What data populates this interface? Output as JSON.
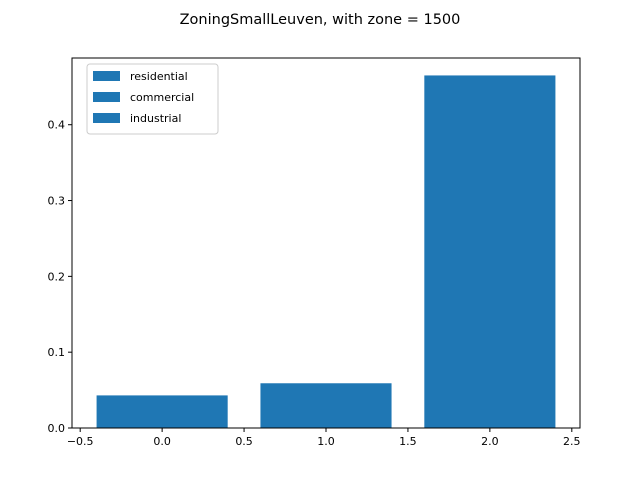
{
  "chart_data": {
    "type": "bar",
    "title": "ZoningSmallLeuven, with zone = 1500",
    "xlabel": "",
    "ylabel": "",
    "x": [
      0,
      1,
      2
    ],
    "values": [
      0.043,
      0.059,
      0.465
    ],
    "bar_width": 0.8,
    "xlim": [
      -0.55,
      2.55
    ],
    "ylim": [
      0,
      0.488
    ],
    "xticks": [
      -0.5,
      0.0,
      0.5,
      1.0,
      1.5,
      2.0,
      2.5
    ],
    "xtick_labels": [
      "−0.5",
      "0.0",
      "0.5",
      "1.0",
      "1.5",
      "2.0",
      "2.5"
    ],
    "yticks": [
      0.0,
      0.1,
      0.2,
      0.3,
      0.4
    ],
    "ytick_labels": [
      "0.0",
      "0.1",
      "0.2",
      "0.3",
      "0.4"
    ],
    "legend": {
      "placement": "top-left",
      "entries": [
        "residential",
        "commercial",
        "industrial"
      ]
    },
    "bar_color": "#1f77b4",
    "grid": false
  }
}
